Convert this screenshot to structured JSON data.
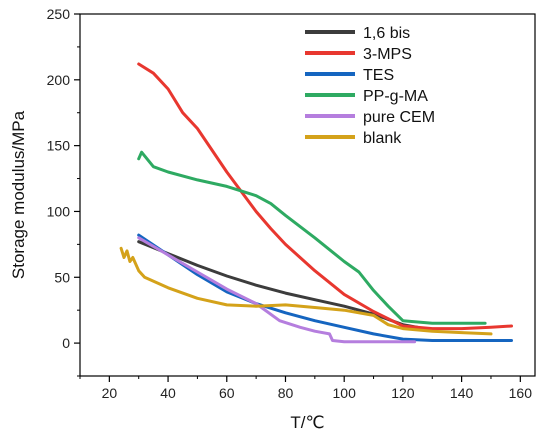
{
  "chart_data": {
    "type": "line",
    "xlabel": "T/℃",
    "ylabel": "Storage modulus/MPa",
    "xlim": [
      10,
      165
    ],
    "ylim": [
      -25,
      250
    ],
    "xticks": [
      20,
      40,
      60,
      80,
      100,
      120,
      140,
      160
    ],
    "yticks": [
      0,
      50,
      100,
      150,
      200,
      250
    ],
    "xtick_labels": [
      "20",
      "40",
      "60",
      "80",
      "100",
      "120",
      "140",
      "160"
    ],
    "ytick_labels": [
      "0",
      "50",
      "100",
      "150",
      "200",
      "250"
    ],
    "grid": false,
    "legend_position": "top-right",
    "series": [
      {
        "name": "1,6 bis",
        "color": "#3c3c3c",
        "x": [
          30,
          40,
          50,
          60,
          70,
          80,
          90,
          100,
          110,
          120,
          125
        ],
        "y": [
          77,
          68,
          59,
          51,
          44,
          38,
          33,
          28,
          22,
          14,
          12
        ]
      },
      {
        "name": "3-MPS",
        "color": "#e8372f",
        "x": [
          30,
          35,
          40,
          45,
          50,
          60,
          70,
          75,
          80,
          90,
          100,
          110,
          120,
          130,
          140,
          150,
          157
        ],
        "y": [
          212,
          205,
          193,
          175,
          163,
          130,
          100,
          87,
          75,
          55,
          37,
          24,
          13,
          11,
          11,
          12,
          13
        ]
      },
      {
        "name": "TES",
        "color": "#1565c0",
        "x": [
          30,
          40,
          50,
          60,
          70,
          80,
          90,
          100,
          110,
          120,
          130,
          140,
          157
        ],
        "y": [
          82,
          67,
          52,
          39,
          30,
          23,
          17,
          12,
          7,
          3,
          2,
          2,
          2
        ]
      },
      {
        "name": "PP-g-MA",
        "color": "#2eaa62",
        "x": [
          30,
          31,
          35,
          40,
          50,
          60,
          70,
          75,
          80,
          90,
          100,
          105,
          110,
          115,
          120,
          130,
          140,
          148
        ],
        "y": [
          140,
          145,
          134,
          130,
          124,
          119,
          112,
          106,
          97,
          80,
          62,
          54,
          40,
          28,
          17,
          15,
          15,
          15
        ]
      },
      {
        "name": "pure CEM",
        "color": "#b57ede",
        "x": [
          30,
          40,
          50,
          60,
          70,
          78,
          85,
          90,
          95,
          96,
          100,
          110,
          124
        ],
        "y": [
          80,
          67,
          54,
          41,
          30,
          17,
          12,
          9,
          7,
          2,
          1,
          1,
          1
        ]
      },
      {
        "name": "blank",
        "color": "#d4a21a",
        "x": [
          24,
          25,
          26,
          27,
          28,
          30,
          32,
          40,
          50,
          60,
          70,
          80,
          90,
          100,
          110,
          115,
          120,
          130,
          140,
          150
        ],
        "y": [
          72,
          65,
          70,
          62,
          65,
          55,
          50,
          42,
          34,
          29,
          28,
          29,
          27,
          25,
          21,
          14,
          11,
          9,
          8,
          7
        ]
      }
    ]
  }
}
